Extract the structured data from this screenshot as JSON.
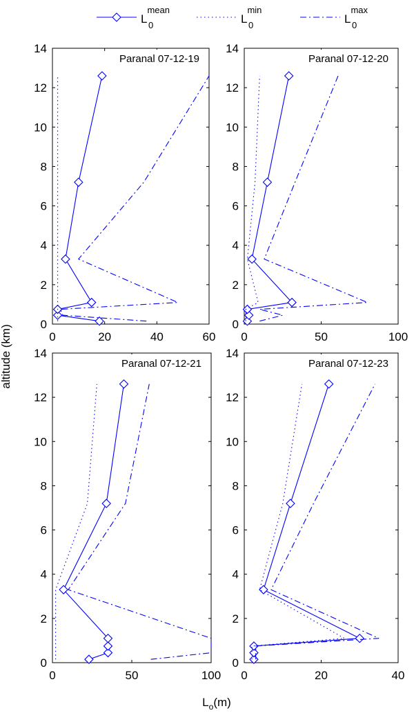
{
  "figure": {
    "ylabel": "altitude (km)",
    "xlabel_main": "L",
    "xlabel_sub": "o",
    "xlabel_tail": "(m)"
  },
  "legend": {
    "placement": "top-center",
    "entries": [
      {
        "main": "L",
        "sub": "0",
        "sup": "mean",
        "style": "solid-diamond"
      },
      {
        "main": "L",
        "sub": "0",
        "sup": "min",
        "style": "dotted"
      },
      {
        "main": "L",
        "sub": "0",
        "sup": "max",
        "style": "dashdot"
      }
    ]
  },
  "colors": {
    "series": "#0000ff",
    "axes": "#000000",
    "background": "#ffffff"
  },
  "chart_data": [
    {
      "type": "line",
      "title": "Paranal 07-12-19",
      "xlim": [
        0,
        60
      ],
      "ylim": [
        0,
        14
      ],
      "xticks": [
        0,
        20,
        40,
        60
      ],
      "yticks": [
        0,
        2,
        4,
        6,
        8,
        10,
        12,
        14
      ],
      "grid": false,
      "series": [
        {
          "name": "mean",
          "x": [
            18,
            2,
            2,
            15,
            5,
            10,
            19
          ],
          "y": [
            0.15,
            0.45,
            0.75,
            1.1,
            3.3,
            7.2,
            12.6
          ]
        },
        {
          "name": "min",
          "x": [
            2,
            2,
            2,
            2,
            2,
            2,
            2
          ],
          "y": [
            0.15,
            0.45,
            0.75,
            1.1,
            3.3,
            7.2,
            12.6
          ]
        },
        {
          "name": "max",
          "x": [
            36,
            4,
            3,
            48,
            10,
            35,
            60
          ],
          "y": [
            0.15,
            0.45,
            0.75,
            1.1,
            3.3,
            7.2,
            12.6
          ]
        }
      ]
    },
    {
      "type": "line",
      "title": "Paranal 07-12-20",
      "xlim": [
        0,
        100
      ],
      "ylim": [
        0,
        14
      ],
      "xticks": [
        0,
        50,
        100
      ],
      "yticks": [
        0,
        2,
        4,
        6,
        8,
        10,
        12,
        14
      ],
      "grid": false,
      "series": [
        {
          "name": "mean",
          "x": [
            2,
            3,
            2,
            31,
            5,
            15,
            29
          ],
          "y": [
            0.15,
            0.45,
            0.75,
            1.1,
            3.3,
            7.2,
            12.6
          ]
        },
        {
          "name": "min",
          "x": [
            1,
            1,
            1,
            9,
            2,
            7,
            10
          ],
          "y": [
            0.15,
            0.45,
            0.75,
            1.1,
            3.3,
            7.2,
            12.6
          ]
        },
        {
          "name": "max",
          "x": [
            10,
            25,
            10,
            80,
            13,
            33,
            61
          ],
          "y": [
            0.15,
            0.45,
            0.75,
            1.1,
            3.3,
            7.2,
            12.6
          ]
        }
      ]
    },
    {
      "type": "line",
      "title": "Paranal 07-12-21",
      "xlim": [
        0,
        100
      ],
      "ylim": [
        0,
        14
      ],
      "xticks": [
        0,
        50,
        100
      ],
      "yticks": [
        0,
        2,
        4,
        6,
        8,
        10,
        12,
        14
      ],
      "grid": false,
      "series": [
        {
          "name": "mean",
          "x": [
            23,
            35,
            35,
            35,
            7,
            34,
            45
          ],
          "y": [
            0.15,
            0.45,
            0.75,
            1.1,
            3.3,
            7.2,
            12.6
          ]
        },
        {
          "name": "min",
          "x": [
            2,
            2,
            2,
            2,
            2,
            22,
            28
          ],
          "y": [
            0.15,
            0.45,
            0.75,
            1.1,
            3.3,
            7.2,
            12.6
          ]
        },
        {
          "name": "max",
          "x": [
            62,
            100,
            100,
            100,
            10,
            46,
            61
          ],
          "y": [
            0.15,
            0.45,
            0.75,
            1.1,
            3.3,
            7.2,
            12.6
          ]
        }
      ]
    },
    {
      "type": "line",
      "title": "Paranal 07-12-23",
      "xlim": [
        0,
        40
      ],
      "ylim": [
        0,
        14
      ],
      "xticks": [
        0,
        20,
        40
      ],
      "yticks": [
        0,
        2,
        4,
        6,
        8,
        10,
        12,
        14
      ],
      "grid": false,
      "series": [
        {
          "name": "mean",
          "x": [
            2.5,
            2.5,
            2.5,
            30,
            5,
            12,
            22
          ],
          "y": [
            0.15,
            0.45,
            0.75,
            1.1,
            3.3,
            7.2,
            12.6
          ]
        },
        {
          "name": "min",
          "x": [
            2,
            2,
            2,
            26,
            4,
            10,
            15
          ],
          "y": [
            0.15,
            0.45,
            0.75,
            1.1,
            3.3,
            7.2,
            12.6
          ]
        },
        {
          "name": "max",
          "x": [
            3,
            3,
            3,
            35,
            7,
            18,
            34
          ],
          "y": [
            0.15,
            0.45,
            0.75,
            1.1,
            3.3,
            7.2,
            12.6
          ]
        }
      ]
    }
  ]
}
